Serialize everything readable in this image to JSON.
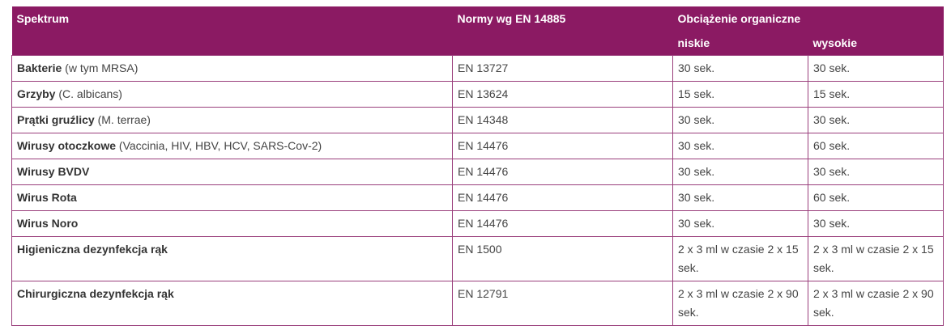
{
  "header": {
    "spectrum": "Spektrum",
    "norms": "Normy wg EN 14885",
    "load": "Obciążenie organiczne",
    "low": "niskie",
    "high": "wysokie"
  },
  "rows": [
    {
      "name": "Bakterie",
      "note": "(w tym MRSA)",
      "norm": "EN 13727",
      "low": "30 sek.",
      "high": "30 sek."
    },
    {
      "name": "Grzyby",
      "note": "(C. albicans)",
      "norm": "EN 13624",
      "low": "15 sek.",
      "high": "15 sek."
    },
    {
      "name": "Prątki gruźlicy",
      "note": "(M. terrae)",
      "norm": "EN 14348",
      "low": "30 sek.",
      "high": "30 sek."
    },
    {
      "name": "Wirusy otoczkowe",
      "note": "(Vaccinia, HIV, HBV, HCV, SARS-Cov-2)",
      "norm": "EN 14476",
      "low": "30 sek.",
      "high": "60 sek."
    },
    {
      "name": "Wirusy BVDV",
      "norm": "EN 14476",
      "low": "30 sek.",
      "high": "30 sek."
    },
    {
      "name": "Wirus Rota",
      "norm": "EN 14476",
      "low": "30 sek.",
      "high": "60 sek."
    },
    {
      "name": "Wirus Noro",
      "norm": "EN 14476",
      "low": "30 sek.",
      "high": "30 sek."
    },
    {
      "name": "Higieniczna dezynfekcja rąk",
      "norm": "EN 1500",
      "low": "2 x 3 ml w czasie 2 x 15 sek.",
      "high": "2 x 3 ml w czasie 2 x 15 sek."
    },
    {
      "name": "Chirurgiczna dezynfekcja rąk",
      "norm": "EN 12791",
      "low": "2 x 3 ml w czasie 2 x 90 sek.",
      "high": "2 x 3 ml w czasie 2 x 90 sek."
    }
  ]
}
